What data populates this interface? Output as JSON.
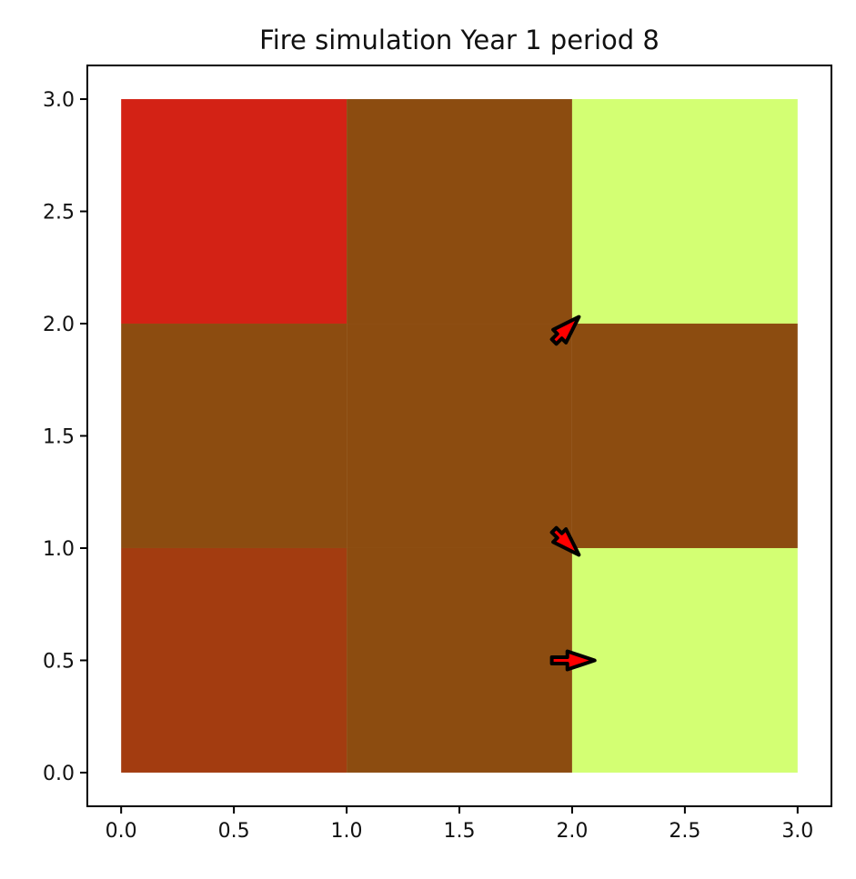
{
  "chart_data": {
    "type": "heatmap",
    "title": "Fire simulation Year 1 period 8",
    "xlabel": "",
    "ylabel": "",
    "xlim": [
      -0.15,
      3.15
    ],
    "ylim": [
      -0.15,
      3.15
    ],
    "x_ticks": [
      "0.0",
      "0.5",
      "1.0",
      "1.5",
      "2.0",
      "2.5",
      "3.0"
    ],
    "y_ticks": [
      "0.0",
      "0.5",
      "1.0",
      "1.5",
      "2.0",
      "2.5",
      "3.0"
    ],
    "grid": false,
    "cells": [
      {
        "x": [
          0,
          1
        ],
        "y": [
          2,
          3
        ],
        "color": "#d32215"
      },
      {
        "x": [
          1,
          2
        ],
        "y": [
          2,
          3
        ],
        "color": "#8c4c10"
      },
      {
        "x": [
          2,
          3
        ],
        "y": [
          2,
          3
        ],
        "color": "#d3ff73"
      },
      {
        "x": [
          0,
          1
        ],
        "y": [
          1,
          2
        ],
        "color": "#8c4c10"
      },
      {
        "x": [
          1,
          2
        ],
        "y": [
          1,
          2
        ],
        "color": "#8c4c10"
      },
      {
        "x": [
          2,
          3
        ],
        "y": [
          1,
          2
        ],
        "color": "#8c4c10"
      },
      {
        "x": [
          0,
          1
        ],
        "y": [
          0,
          1
        ],
        "color": "#a33c10"
      },
      {
        "x": [
          1,
          2
        ],
        "y": [
          0,
          1
        ],
        "color": "#8c4c10"
      },
      {
        "x": [
          2,
          3
        ],
        "y": [
          0,
          1
        ],
        "color": "#d3ff73"
      }
    ],
    "arrows": [
      {
        "from": [
          1.92,
          1.92
        ],
        "to": [
          2.03,
          2.03
        ],
        "edge_color": "#000000",
        "fill_color": "#ff0000"
      },
      {
        "from": [
          1.92,
          1.08
        ],
        "to": [
          2.03,
          0.97
        ],
        "edge_color": "#000000",
        "fill_color": "#ff0000"
      },
      {
        "from": [
          1.91,
          0.5
        ],
        "to": [
          2.1,
          0.5
        ],
        "edge_color": "#000000",
        "fill_color": "#ff0000"
      }
    ]
  }
}
